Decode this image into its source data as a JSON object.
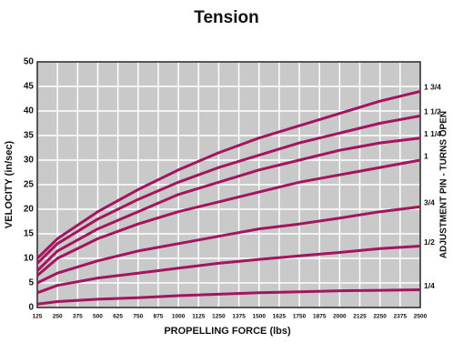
{
  "chart_data": {
    "type": "line",
    "title": "Tension",
    "x_label": "PROPELLING FORCE (lbs)",
    "y_label": "VELOCITY (in/sec)",
    "y2_label": "ADJUSTMENT PIN - TURNS OPEN",
    "x": [
      125,
      250,
      500,
      750,
      1000,
      1250,
      1500,
      1750,
      2000,
      2250,
      2500
    ],
    "xlim": [
      125,
      2500
    ],
    "xticks": [
      125,
      250,
      375,
      500,
      625,
      750,
      875,
      1000,
      1125,
      1250,
      1375,
      1500,
      1625,
      1750,
      1875,
      2000,
      2125,
      2250,
      2375,
      2500
    ],
    "ylim": [
      0,
      50
    ],
    "yticks": [
      0,
      5,
      10,
      15,
      20,
      25,
      30,
      35,
      40,
      45,
      50
    ],
    "grid": true,
    "series": [
      {
        "name": "1 3/4",
        "color": "#a3155e",
        "values": [
          10,
          14,
          19.5,
          24,
          28,
          31.5,
          34.5,
          37,
          39.5,
          42,
          44
        ]
      },
      {
        "name": "1 1/2",
        "color": "#a3155e",
        "values": [
          9,
          13,
          18,
          22,
          25.5,
          28.5,
          31,
          33.5,
          35.5,
          37.5,
          39
        ]
      },
      {
        "name": "1 1/4",
        "color": "#a3155e",
        "values": [
          7.5,
          11.5,
          16,
          19.5,
          23,
          25.5,
          28,
          30,
          32,
          33.5,
          34.5
        ]
      },
      {
        "name": "1",
        "color": "#a3155e",
        "values": [
          6.5,
          10,
          14,
          17,
          19.5,
          21.5,
          23.5,
          25.5,
          27,
          28.5,
          30
        ]
      },
      {
        "name": "3/4",
        "color": "#a3155e",
        "values": [
          5,
          7,
          9.5,
          11.5,
          13,
          14.5,
          16,
          17,
          18.2,
          19.5,
          20.5
        ]
      },
      {
        "name": "1/2",
        "color": "#a3155e",
        "values": [
          3,
          4.5,
          6,
          7,
          8,
          9,
          9.8,
          10.5,
          11.2,
          12,
          12.5
        ]
      },
      {
        "name": "1/4",
        "color": "#a3155e",
        "values": [
          0.7,
          1.2,
          1.7,
          2,
          2.4,
          2.7,
          3,
          3.2,
          3.4,
          3.5,
          3.6
        ]
      }
    ]
  }
}
